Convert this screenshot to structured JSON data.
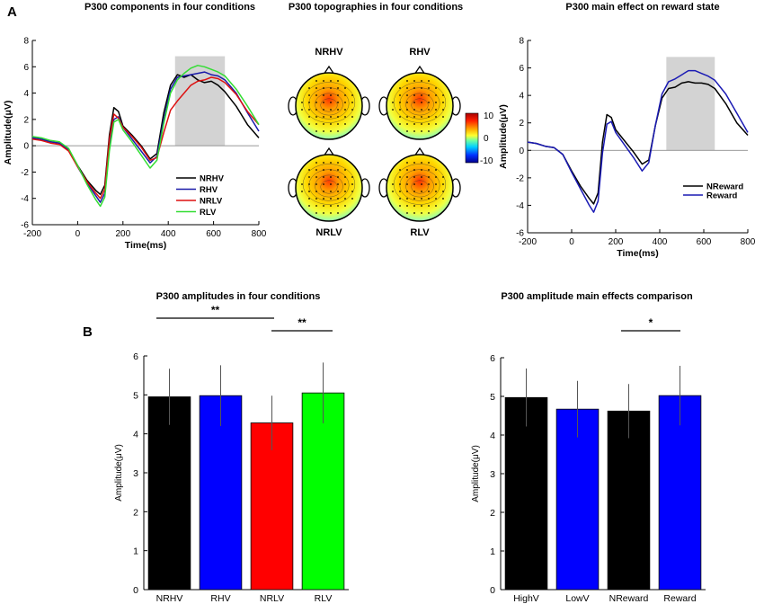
{
  "panel_labels": {
    "a": "A",
    "b": "B"
  },
  "chart_data": [
    {
      "type": "line",
      "id": "components",
      "title": "P300 components in four conditions",
      "xlabel": "Time(ms)",
      "ylabel": "Amplitude(μV)",
      "xlim": [
        -200,
        800
      ],
      "ylim": [
        -6,
        8
      ],
      "xticks": [
        -200,
        0,
        200,
        400,
        600,
        800
      ],
      "yticks": [
        -6,
        -4,
        -2,
        0,
        2,
        4,
        6,
        8
      ],
      "shaded_window": [
        430,
        650
      ],
      "legend_position": "bottom-center",
      "series": [
        {
          "name": "NRHV",
          "color": "#000000",
          "x": [
            -200,
            -160,
            -120,
            -80,
            -40,
            0,
            40,
            80,
            100,
            120,
            140,
            160,
            180,
            200,
            240,
            280,
            320,
            350,
            380,
            410,
            440,
            470,
            500,
            530,
            560,
            590,
            620,
            650,
            700,
            750,
            800
          ],
          "y": [
            0.6,
            0.5,
            0.3,
            0.2,
            -0.3,
            -1.5,
            -2.6,
            -3.4,
            -3.7,
            -3.0,
            0.8,
            2.9,
            2.6,
            1.5,
            0.8,
            0.0,
            -1.0,
            -0.6,
            2.5,
            4.6,
            5.4,
            5.2,
            5.4,
            5.0,
            4.8,
            4.9,
            4.6,
            4.1,
            3.0,
            1.6,
            0.6
          ]
        },
        {
          "name": "RHV",
          "color": "#1a1aa8",
          "x": [
            -200,
            -160,
            -120,
            -80,
            -40,
            0,
            40,
            80,
            100,
            120,
            140,
            160,
            180,
            200,
            240,
            280,
            320,
            350,
            380,
            410,
            440,
            470,
            500,
            530,
            560,
            590,
            620,
            650,
            700,
            750,
            800
          ],
          "y": [
            0.6,
            0.5,
            0.3,
            0.2,
            -0.3,
            -1.6,
            -2.8,
            -3.8,
            -4.3,
            -3.6,
            0.0,
            2.0,
            2.2,
            1.4,
            0.5,
            -0.4,
            -1.3,
            -0.8,
            2.0,
            4.3,
            5.2,
            5.3,
            5.4,
            5.5,
            5.6,
            5.4,
            5.3,
            5.0,
            4.0,
            2.5,
            1.1
          ]
        },
        {
          "name": "NRLV",
          "color": "#dd1111",
          "x": [
            -200,
            -160,
            -120,
            -80,
            -40,
            0,
            40,
            80,
            100,
            120,
            140,
            160,
            180,
            200,
            240,
            280,
            320,
            350,
            380,
            410,
            440,
            470,
            500,
            530,
            560,
            590,
            620,
            650,
            700,
            750,
            800
          ],
          "y": [
            0.5,
            0.4,
            0.2,
            0.1,
            -0.4,
            -1.6,
            -2.7,
            -3.6,
            -4.0,
            -3.3,
            0.5,
            2.4,
            2.1,
            1.4,
            0.7,
            -0.1,
            -1.1,
            -0.9,
            1.0,
            2.7,
            3.4,
            4.0,
            4.6,
            4.9,
            5.0,
            5.2,
            5.1,
            4.8,
            3.9,
            2.6,
            1.6
          ]
        },
        {
          "name": "RLV",
          "color": "#33dd33",
          "x": [
            -200,
            -160,
            -120,
            -80,
            -40,
            0,
            40,
            80,
            100,
            120,
            140,
            160,
            180,
            200,
            240,
            280,
            320,
            350,
            380,
            410,
            440,
            470,
            500,
            530,
            560,
            590,
            620,
            650,
            700,
            750,
            800
          ],
          "y": [
            0.7,
            0.6,
            0.4,
            0.3,
            -0.2,
            -1.5,
            -2.9,
            -4.1,
            -4.6,
            -3.9,
            -0.4,
            1.8,
            2.0,
            1.2,
            0.3,
            -0.7,
            -1.7,
            -1.1,
            1.7,
            4.0,
            5.0,
            5.5,
            5.9,
            6.1,
            6.0,
            5.8,
            5.6,
            5.3,
            4.3,
            3.0,
            1.6
          ]
        }
      ]
    },
    {
      "type": "line",
      "id": "reward",
      "title": "P300 main effect on reward state",
      "xlabel": "Time(ms)",
      "ylabel": "Amplitude(μV)",
      "xlim": [
        -200,
        800
      ],
      "ylim": [
        -6,
        8
      ],
      "xticks": [
        -200,
        0,
        200,
        400,
        600,
        800
      ],
      "yticks": [
        -6,
        -4,
        -2,
        0,
        2,
        4,
        6,
        8
      ],
      "shaded_window": [
        430,
        650
      ],
      "legend_position": "bottom-right",
      "series": [
        {
          "name": "NReward",
          "color": "#000000",
          "x": [
            -200,
            -160,
            -120,
            -80,
            -40,
            0,
            40,
            80,
            100,
            120,
            140,
            160,
            180,
            200,
            240,
            280,
            320,
            350,
            380,
            410,
            440,
            470,
            500,
            530,
            560,
            590,
            620,
            650,
            700,
            750,
            800
          ],
          "y": [
            0.6,
            0.5,
            0.3,
            0.2,
            -0.3,
            -1.5,
            -2.6,
            -3.5,
            -3.9,
            -3.1,
            0.6,
            2.6,
            2.4,
            1.5,
            0.7,
            -0.1,
            -1.0,
            -0.7,
            1.8,
            3.8,
            4.5,
            4.6,
            4.9,
            5.0,
            4.9,
            4.9,
            4.8,
            4.5,
            3.4,
            2.0,
            1.1
          ]
        },
        {
          "name": "Reward",
          "color": "#1a1ab4",
          "x": [
            -200,
            -160,
            -120,
            -80,
            -40,
            0,
            40,
            80,
            100,
            120,
            140,
            160,
            180,
            200,
            240,
            280,
            320,
            350,
            380,
            410,
            440,
            470,
            500,
            530,
            560,
            590,
            620,
            650,
            700,
            750,
            800
          ],
          "y": [
            0.6,
            0.5,
            0.3,
            0.2,
            -0.3,
            -1.6,
            -2.8,
            -4.0,
            -4.5,
            -3.7,
            -0.2,
            1.9,
            2.1,
            1.3,
            0.4,
            -0.5,
            -1.5,
            -0.9,
            1.8,
            4.1,
            5.0,
            5.2,
            5.5,
            5.8,
            5.8,
            5.6,
            5.4,
            5.1,
            4.1,
            2.7,
            1.3
          ]
        }
      ]
    },
    {
      "type": "bar",
      "id": "amplitudes",
      "title": "P300 amplitudes in four conditions",
      "ylabel": "Amplitude(μV)",
      "ylim": [
        0,
        6
      ],
      "yticks": [
        0,
        1,
        2,
        3,
        4,
        5,
        6
      ],
      "categories": [
        "NRHV",
        "RHV",
        "NRLV",
        "RLV"
      ],
      "values": [
        4.95,
        4.98,
        4.28,
        5.05
      ],
      "errors": [
        0.72,
        0.78,
        0.7,
        0.78
      ],
      "colors": [
        "#000000",
        "#0000ff",
        "#ff0000",
        "#00ff00"
      ],
      "significance": [
        {
          "from": "NRHV",
          "to": "NRLV",
          "label": "**"
        },
        {
          "from": "NRLV",
          "to": "RLV",
          "label": "**"
        }
      ]
    },
    {
      "type": "bar",
      "id": "main_effects",
      "title": "P300 amplitude main effects comparison",
      "ylabel": "Amplitude(μV)",
      "ylim": [
        0,
        6
      ],
      "yticks": [
        0,
        1,
        2,
        3,
        4,
        5,
        6
      ],
      "categories": [
        "HighV",
        "LowV",
        "NReward",
        "Reward"
      ],
      "values": [
        4.97,
        4.67,
        4.62,
        5.02
      ],
      "errors": [
        0.75,
        0.73,
        0.7,
        0.77
      ],
      "colors": [
        "#000000",
        "#0000ff",
        "#000000",
        "#0000ff"
      ],
      "significance": [
        {
          "from": "NReward",
          "to": "Reward",
          "label": "*"
        }
      ]
    }
  ],
  "topographies": {
    "title": "P300 topographies in four conditions",
    "maps": [
      {
        "label": "NRHV",
        "intensity": 0.9
      },
      {
        "label": "RHV",
        "intensity": 0.95
      },
      {
        "label": "NRLV",
        "intensity": 0.75
      },
      {
        "label": "RLV",
        "intensity": 1.0
      }
    ],
    "colorbar": {
      "ticks": [
        "10",
        "0",
        "-10"
      ]
    }
  }
}
